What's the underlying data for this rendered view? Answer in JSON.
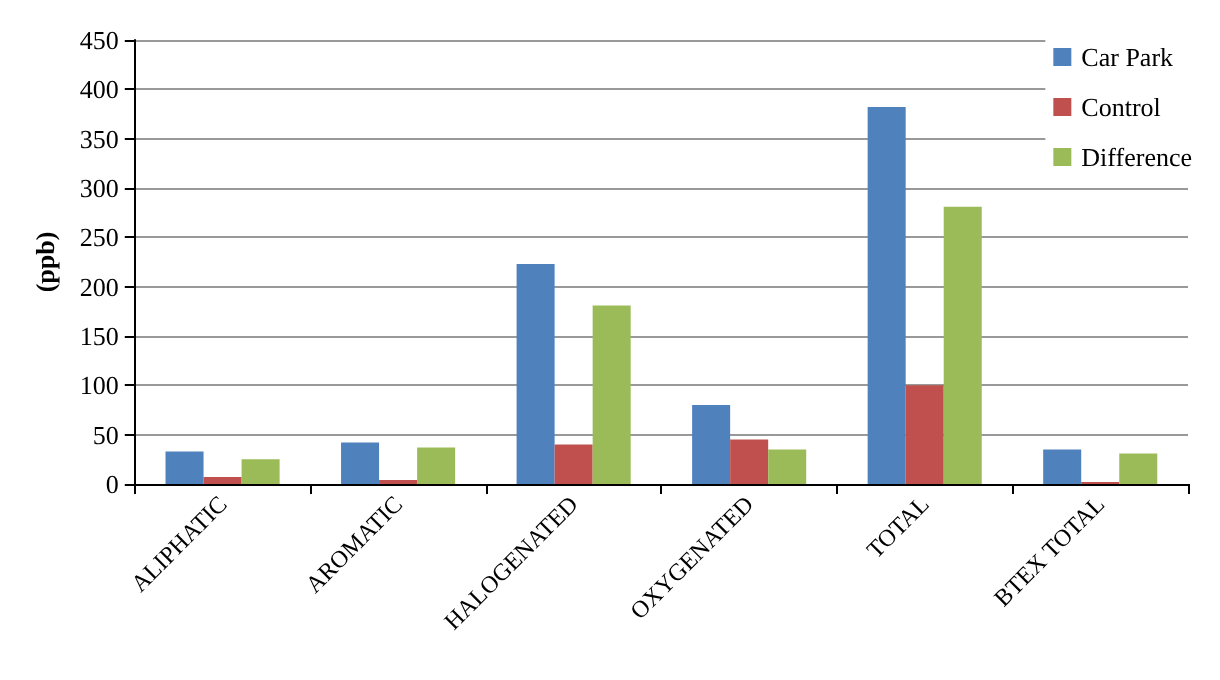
{
  "chart_data": {
    "type": "bar",
    "ylabel": "(ppb)",
    "categories": [
      "ALIPHATIC",
      "AROMATIC",
      "HALOGENATED",
      "OXYGENATED",
      "TOTAL",
      "BTEX TOTAL"
    ],
    "series": [
      {
        "name": "Car Park",
        "color": "#4f81bd",
        "values": [
          33,
          42,
          223,
          80,
          382,
          35
        ]
      },
      {
        "name": "Control",
        "color": "#c0504d",
        "values": [
          7,
          4,
          40,
          45,
          100,
          2
        ]
      },
      {
        "name": "Difference",
        "color": "#9bbb59",
        "values": [
          25,
          37,
          181,
          35,
          281,
          31
        ]
      }
    ],
    "ylim": [
      0,
      450
    ],
    "yticks": [
      0,
      50,
      100,
      150,
      200,
      250,
      300,
      350,
      400,
      450
    ],
    "grid": "y",
    "legend": "top right"
  }
}
